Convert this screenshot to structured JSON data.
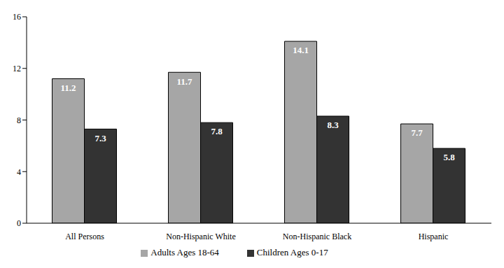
{
  "chart_data": {
    "type": "bar",
    "categories": [
      "All Persons",
      "Non-Hispanic White",
      "Non-Hispanic Black",
      "Hispanic"
    ],
    "series": [
      {
        "name": "Adults Ages 18-64",
        "color": "#a6a6a6",
        "values": [
          11.2,
          11.7,
          14.1,
          7.7
        ]
      },
      {
        "name": "Children Ages 0-17",
        "color": "#333333",
        "values": [
          7.3,
          7.8,
          8.3,
          5.8
        ]
      }
    ],
    "ylim": [
      0,
      16
    ],
    "yticks": [
      0,
      4,
      8,
      12,
      16
    ],
    "grid": false,
    "legend": "bottom",
    "data_labels": true
  }
}
